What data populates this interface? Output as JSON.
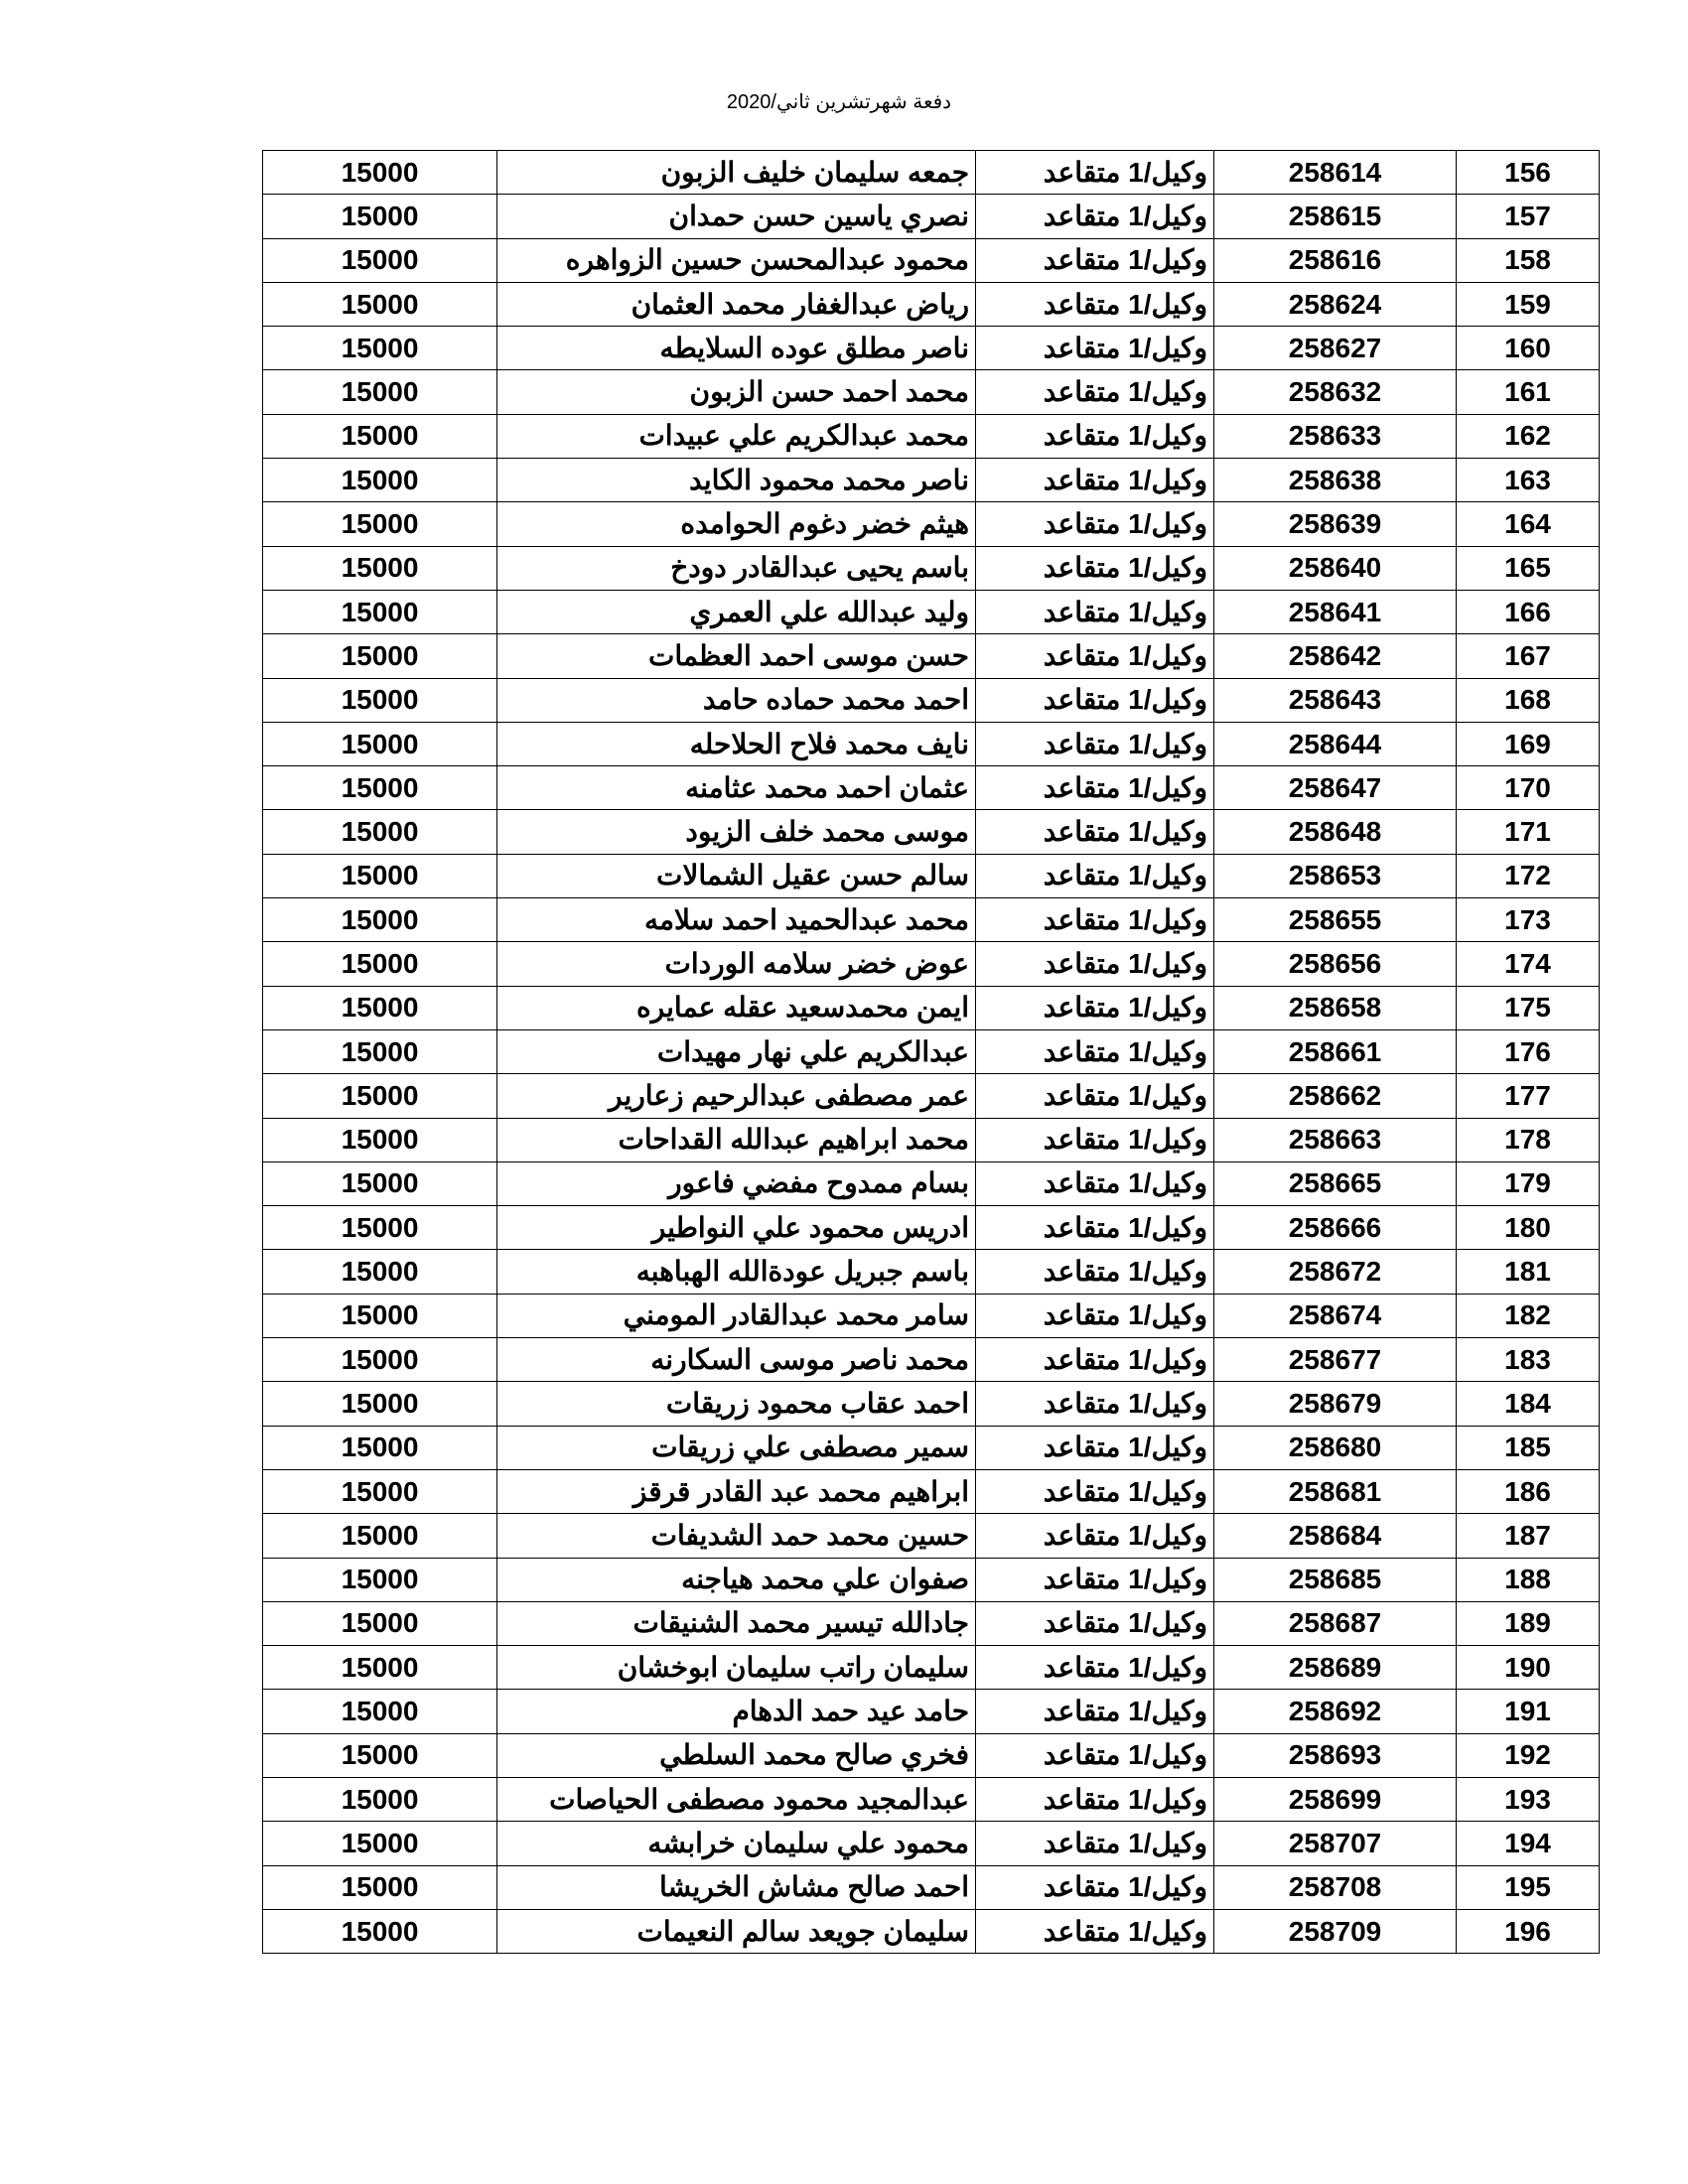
{
  "header": {
    "title": "دفعة شهرتشرين ثاني/2020"
  },
  "table": {
    "rows": [
      [
        156,
        258614,
        "وكيل/1 متقاعد",
        "جمعه سليمان خليف الزبون",
        15000
      ],
      [
        157,
        258615,
        "وكيل/1 متقاعد",
        "نصري ياسين حسن حمدان",
        15000
      ],
      [
        158,
        258616,
        "وكيل/1 متقاعد",
        "محمود عبدالمحسن حسين الزواهره",
        15000
      ],
      [
        159,
        258624,
        "وكيل/1 متقاعد",
        "رياض عبدالغفار محمد العثمان",
        15000
      ],
      [
        160,
        258627,
        "وكيل/1 متقاعد",
        "ناصر مطلق عوده السلايطه",
        15000
      ],
      [
        161,
        258632,
        "وكيل/1 متقاعد",
        "محمد احمد حسن الزبون",
        15000
      ],
      [
        162,
        258633,
        "وكيل/1 متقاعد",
        "محمد عبدالكريم علي عبيدات",
        15000
      ],
      [
        163,
        258638,
        "وكيل/1 متقاعد",
        "ناصر محمد محمود الكايد",
        15000
      ],
      [
        164,
        258639,
        "وكيل/1 متقاعد",
        "هيثم خضر دغوم الحوامده",
        15000
      ],
      [
        165,
        258640,
        "وكيل/1 متقاعد",
        "باسم يحيى عبدالقادر دودخ",
        15000
      ],
      [
        166,
        258641,
        "وكيل/1 متقاعد",
        "وليد عبدالله علي العمري",
        15000
      ],
      [
        167,
        258642,
        "وكيل/1 متقاعد",
        "حسن موسى احمد العظمات",
        15000
      ],
      [
        168,
        258643,
        "وكيل/1 متقاعد",
        "احمد محمد حماده حامد",
        15000
      ],
      [
        169,
        258644,
        "وكيل/1 متقاعد",
        "نايف محمد فلاح الحلاحله",
        15000
      ],
      [
        170,
        258647,
        "وكيل/1 متقاعد",
        "عثمان احمد محمد عثامنه",
        15000
      ],
      [
        171,
        258648,
        "وكيل/1 متقاعد",
        "موسى محمد خلف الزيود",
        15000
      ],
      [
        172,
        258653,
        "وكيل/1 متقاعد",
        "سالم حسن عقيل الشمالات",
        15000
      ],
      [
        173,
        258655,
        "وكيل/1 متقاعد",
        "محمد عبدالحميد احمد سلامه",
        15000
      ],
      [
        174,
        258656,
        "وكيل/1 متقاعد",
        "عوض خضر سلامه الوردات",
        15000
      ],
      [
        175,
        258658,
        "وكيل/1 متقاعد",
        "ايمن محمدسعيد عقله عمايره",
        15000
      ],
      [
        176,
        258661,
        "وكيل/1 متقاعد",
        "عبدالكريم علي نهار مهيدات",
        15000
      ],
      [
        177,
        258662,
        "وكيل/1 متقاعد",
        "عمر مصطفى عبدالرحيم زعارير",
        15000
      ],
      [
        178,
        258663,
        "وكيل/1 متقاعد",
        "محمد ابراهيم عبدالله القداحات",
        15000
      ],
      [
        179,
        258665,
        "وكيل/1 متقاعد",
        "بسام ممدوح مفضي فاعور",
        15000
      ],
      [
        180,
        258666,
        "وكيل/1 متقاعد",
        "ادريس محمود علي النواطير",
        15000
      ],
      [
        181,
        258672,
        "وكيل/1 متقاعد",
        "باسم جبريل عودةالله الهباهبه",
        15000
      ],
      [
        182,
        258674,
        "وكيل/1 متقاعد",
        "سامر محمد عبدالقادر المومني",
        15000
      ],
      [
        183,
        258677,
        "وكيل/1 متقاعد",
        "محمد ناصر موسى السكارنه",
        15000
      ],
      [
        184,
        258679,
        "وكيل/1 متقاعد",
        "احمد عقاب محمود زريقات",
        15000
      ],
      [
        185,
        258680,
        "وكيل/1 متقاعد",
        "سمير مصطفى علي زريقات",
        15000
      ],
      [
        186,
        258681,
        "وكيل/1 متقاعد",
        "ابراهيم محمد عبد القادر قرقز",
        15000
      ],
      [
        187,
        258684,
        "وكيل/1 متقاعد",
        "حسين محمد حمد الشديفات",
        15000
      ],
      [
        188,
        258685,
        "وكيل/1 متقاعد",
        "صفوان علي محمد هياجنه",
        15000
      ],
      [
        189,
        258687,
        "وكيل/1 متقاعد",
        "جادالله تيسير محمد الشنيقات",
        15000
      ],
      [
        190,
        258689,
        "وكيل/1 متقاعد",
        "سليمان راتب سليمان ابوخشان",
        15000
      ],
      [
        191,
        258692,
        "وكيل/1 متقاعد",
        "حامد عيد حمد الدهام",
        15000
      ],
      [
        192,
        258693,
        "وكيل/1 متقاعد",
        "فخري صالح محمد السلطي",
        15000
      ],
      [
        193,
        258699,
        "وكيل/1 متقاعد",
        "عبدالمجيد محمود مصطفى الحياصات",
        15000
      ],
      [
        194,
        258707,
        "وكيل/1 متقاعد",
        "محمود علي سليمان خرابشه",
        15000
      ],
      [
        195,
        258708,
        "وكيل/1 متقاعد",
        "احمد صالح مشاش الخريشا",
        15000
      ],
      [
        196,
        258709,
        "وكيل/1 متقاعد",
        "سليمان جويعد سالم النعيمات",
        15000
      ]
    ]
  }
}
